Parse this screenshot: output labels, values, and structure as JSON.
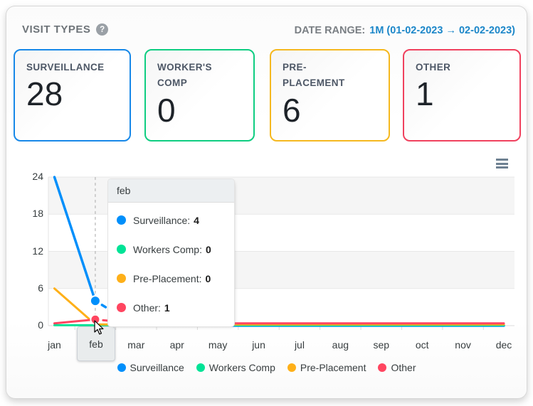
{
  "header": {
    "title": "VISIT TYPES",
    "help_glyph": "?",
    "date_range_label": "DATE RANGE:",
    "date_range_value": "1M (01-02-2023 → 02-02-2023)"
  },
  "cards": [
    {
      "label": "SURVEILLANCE",
      "value": "28",
      "color": "#1788E8"
    },
    {
      "label": "WORKER'S COMP",
      "value": "0",
      "color": "#0ECD81"
    },
    {
      "label": "PRE-PLACEMENT",
      "value": "6",
      "color": "#F5B81F"
    },
    {
      "label": "OTHER",
      "value": "1",
      "color": "#F0415E"
    }
  ],
  "chart_data": {
    "type": "line",
    "title": "",
    "xlabel": "",
    "ylabel": "",
    "categories": [
      "jan",
      "feb",
      "mar",
      "apr",
      "may",
      "jun",
      "jul",
      "aug",
      "sep",
      "oct",
      "nov",
      "dec"
    ],
    "series": [
      {
        "name": "Surveillance",
        "color": "#008FFB",
        "values": [
          24,
          4,
          0,
          0,
          0,
          0,
          0,
          0,
          0,
          0,
          0,
          0
        ]
      },
      {
        "name": "Workers Comp",
        "color": "#00E396",
        "values": [
          0,
          0,
          0,
          0,
          0,
          0,
          0,
          0,
          0,
          0,
          0,
          0
        ]
      },
      {
        "name": "Pre-Placement",
        "color": "#FEB019",
        "values": [
          6,
          0,
          0,
          0,
          0,
          0,
          0,
          0,
          0,
          0,
          0,
          0
        ]
      },
      {
        "name": "Other",
        "color": "#FF4560",
        "values": [
          0,
          1,
          0,
          0,
          0,
          0,
          0,
          0,
          0,
          0,
          0,
          0
        ]
      }
    ],
    "ylim": [
      0,
      24
    ],
    "yticks": [
      0,
      6,
      12,
      18,
      24
    ],
    "grid": "horizontal alternating bands",
    "legend_position": "bottom",
    "hover_index": 1
  },
  "tooltip": {
    "title": "feb",
    "rows": [
      {
        "label": "Surveillance:",
        "value": "4",
        "color": "#008FFB"
      },
      {
        "label": "Workers Comp:",
        "value": "0",
        "color": "#00E396"
      },
      {
        "label": "Pre-Placement:",
        "value": "0",
        "color": "#FEB019"
      },
      {
        "label": "Other:",
        "value": "1",
        "color": "#FF4560"
      }
    ]
  },
  "xaxis_tooltip": {
    "label": "feb"
  }
}
